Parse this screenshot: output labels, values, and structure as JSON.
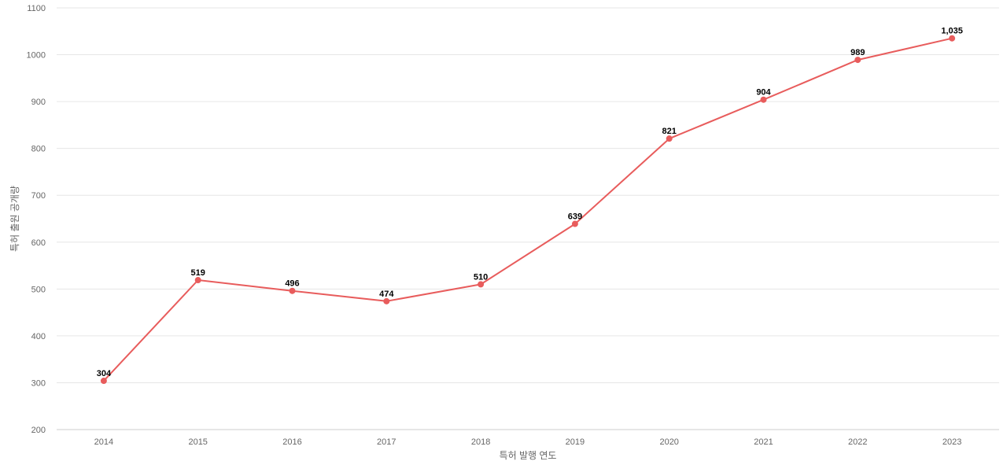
{
  "chart_data": {
    "type": "line",
    "title": "",
    "xlabel": "특허 발행 연도",
    "ylabel": "특허 출원 공개량",
    "categories": [
      "2014",
      "2015",
      "2016",
      "2017",
      "2018",
      "2019",
      "2020",
      "2021",
      "2022",
      "2023"
    ],
    "series": [
      {
        "values": [
          304,
          519,
          496,
          474,
          510,
          639,
          821,
          904,
          989,
          1035
        ],
        "data_labels": [
          "304",
          "519",
          "496",
          "474",
          "510",
          "639",
          "821",
          "904",
          "989",
          "1,035"
        ],
        "color": "#e85c5c"
      }
    ],
    "ylim": [
      200,
      1100
    ],
    "yticks": [
      "200",
      "300",
      "400",
      "500",
      "600",
      "700",
      "800",
      "900",
      "1000",
      "1100"
    ],
    "grid": true,
    "legend": "none"
  }
}
